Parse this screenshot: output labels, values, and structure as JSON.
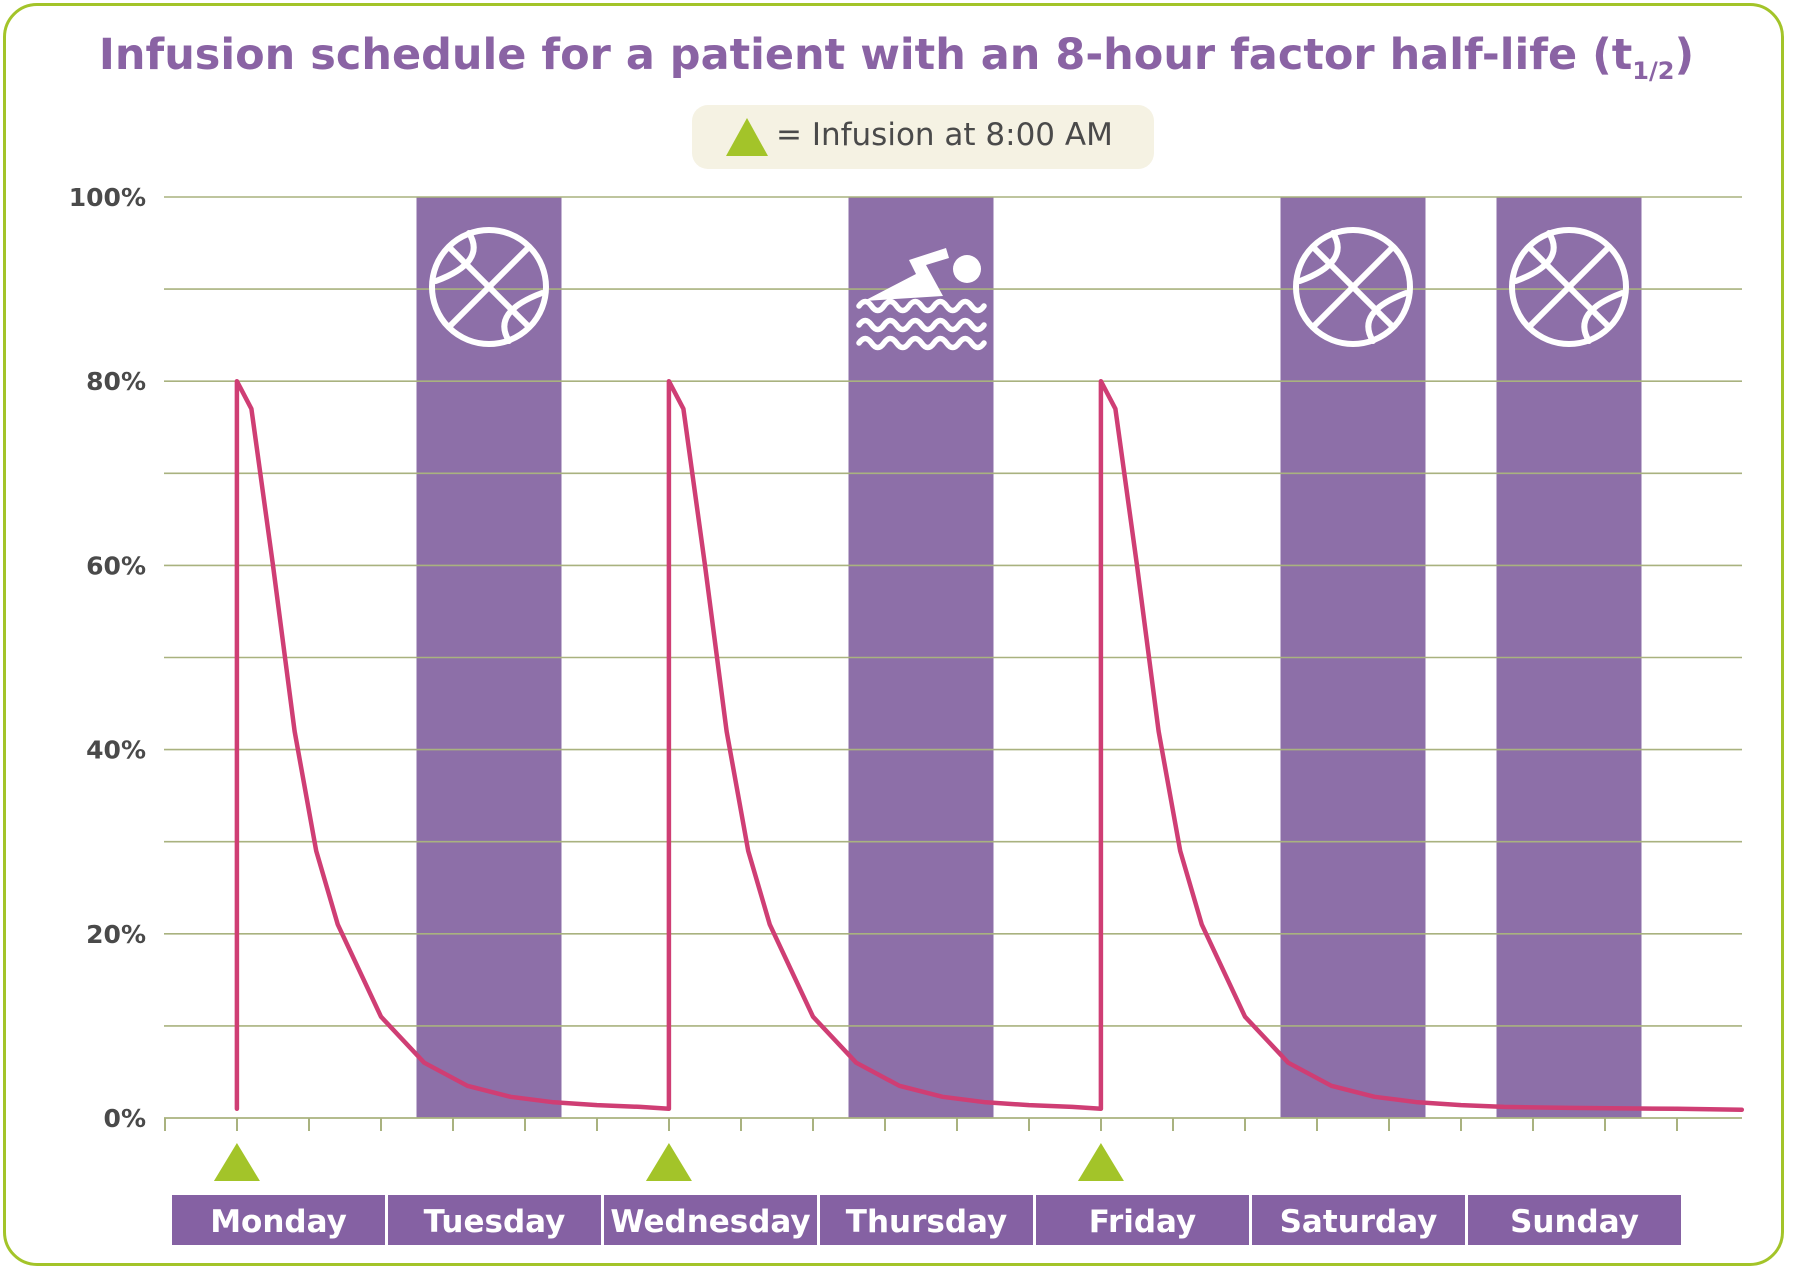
{
  "title_main": "Infusion schedule for a patient with an 8-hour factor half-life (t",
  "title_sub": "1/2",
  "title_close": ")",
  "legend": {
    "marker_icon": "green-triangle",
    "label": "= Infusion at 8:00 AM"
  },
  "colors": {
    "curve": "#cf3e74",
    "activity_bar": "#8d6fa8",
    "day_bar": "#8561a3",
    "marker": "#a3c429",
    "grid": "#a9b27f",
    "border": "#a3c429"
  },
  "chart_data": {
    "type": "line",
    "title": "Infusion schedule for a patient with an 8-hour factor half-life (t1/2)",
    "x_unit": "days (0 = Monday 00:00)",
    "xlim": [
      0,
      7.333
    ],
    "ylim": [
      0,
      100
    ],
    "ytick_labels": [
      "0%",
      "20%",
      "40%",
      "60%",
      "80%",
      "100%"
    ],
    "ytick_values": [
      0,
      20,
      40,
      60,
      80,
      100
    ],
    "categories": [
      "Monday",
      "Tuesday",
      "Wednesday",
      "Thursday",
      "Friday",
      "Saturday",
      "Sunday"
    ],
    "infusions_day": [
      0.333,
      2.333,
      4.333
    ],
    "peak_percent": 80,
    "trough_percent": 1,
    "half_life_hours": 8,
    "series": [
      {
        "x": [
          0.333,
          0.4,
          0.5,
          0.6,
          0.7,
          0.8,
          1.0,
          1.2,
          1.4,
          1.6,
          1.8,
          2.0,
          2.2,
          2.333,
          2.333,
          2.4,
          2.5,
          2.6,
          2.7,
          2.8,
          3.0,
          3.2,
          3.4,
          3.6,
          3.8,
          4.0,
          4.2,
          4.333,
          4.333,
          4.4,
          4.5,
          4.6,
          4.7,
          4.8,
          5.0,
          5.2,
          5.4,
          5.6,
          5.8,
          6.0,
          6.2,
          6.5,
          7.0,
          7.3
        ],
        "y": [
          80,
          77,
          60,
          42,
          29,
          21,
          11,
          6,
          3.5,
          2.3,
          1.7,
          1.4,
          1.2,
          1,
          80,
          77,
          60,
          42,
          29,
          21,
          11,
          6,
          3.5,
          2.3,
          1.7,
          1.4,
          1.2,
          1,
          80,
          77,
          60,
          42,
          29,
          21,
          11,
          6,
          3.5,
          2.3,
          1.7,
          1.4,
          1.2,
          1.1,
          1.0,
          0.9
        ]
      }
    ],
    "activities": [
      {
        "day": "Tuesday",
        "activity": "basketball-icon"
      },
      {
        "day": "Thursday",
        "activity": "swimming-icon"
      },
      {
        "day": "Saturday",
        "activity": "basketball-icon"
      },
      {
        "day": "Sunday",
        "activity": "basketball-icon"
      }
    ]
  }
}
